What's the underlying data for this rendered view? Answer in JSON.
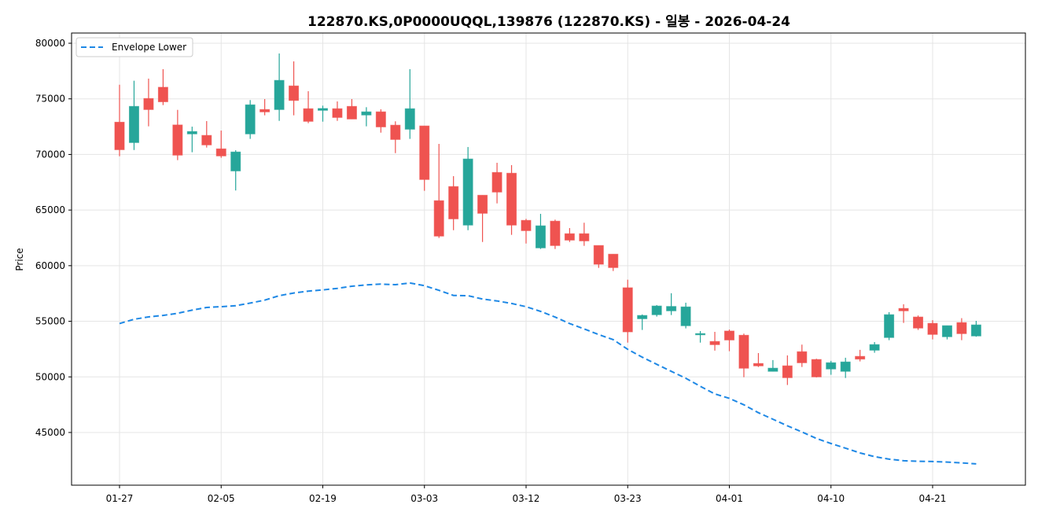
{
  "chart_data": {
    "type": "candlestick",
    "title": "122870.KS,0P0000UQQL,139876 (122870.KS) - 일봉 - 2026-04-24",
    "xlabel": "",
    "ylabel": "Price",
    "ylim": [
      40500,
      80500
    ],
    "yticks": [
      45000,
      50000,
      55000,
      60000,
      65000,
      70000,
      75000,
      80000
    ],
    "xtick_labels": [
      "01-27",
      "02-05",
      "02-19",
      "03-03",
      "03-12",
      "03-23",
      "04-01",
      "04-10",
      "04-21"
    ],
    "grid": true,
    "legend_position": "top-left",
    "colors": {
      "up": "#26a69a",
      "down": "#ef5350",
      "envelope": "#1e88e5"
    },
    "dates": [
      "01-27",
      "01-28",
      "01-29",
      "01-30",
      "02-02",
      "02-03",
      "02-04",
      "02-05",
      "02-06",
      "02-09",
      "02-10",
      "02-11",
      "02-12",
      "02-13",
      "02-19",
      "02-20",
      "02-23",
      "02-24",
      "02-25",
      "02-26",
      "02-27",
      "03-03",
      "03-04",
      "03-05",
      "03-06",
      "03-09",
      "03-10",
      "03-11",
      "03-12",
      "03-13",
      "03-16",
      "03-17",
      "03-18",
      "03-19",
      "03-20",
      "03-23",
      "03-24",
      "03-25",
      "03-26",
      "03-27",
      "03-30",
      "03-31",
      "04-01",
      "04-02",
      "04-03",
      "04-06",
      "04-07",
      "04-08",
      "04-09",
      "04-10",
      "04-13",
      "04-14",
      "04-15",
      "04-16",
      "04-17",
      "04-20",
      "04-21",
      "04-22",
      "04-23",
      "04-24"
    ],
    "open": [
      72900,
      71070,
      75030,
      76040,
      72650,
      71850,
      71710,
      70500,
      68520,
      71850,
      74040,
      74040,
      76160,
      74110,
      73970,
      74110,
      74320,
      73550,
      73830,
      72630,
      72270,
      72560,
      65840,
      67110,
      63650,
      66330,
      68380,
      68310,
      64070,
      61600,
      64000,
      62870,
      62870,
      61810,
      61030,
      58010,
      55230,
      55590,
      55940,
      54600,
      53790,
      53180,
      54120,
      53740,
      51200,
      50500,
      50990,
      52260,
      51560,
      50710,
      50500,
      51840,
      52400,
      53540,
      56150,
      55380,
      54810,
      53610,
      54880,
      53680
    ],
    "high": [
      76270,
      76630,
      76820,
      77670,
      74010,
      72500,
      73000,
      72150,
      70380,
      74890,
      74980,
      79080,
      78370,
      75690,
      74390,
      74770,
      74980,
      74250,
      74060,
      72980,
      77670,
      72560,
      70950,
      68050,
      70670,
      66330,
      69250,
      69040,
      64210,
      64660,
      64140,
      63380,
      63860,
      61810,
      61030,
      58740,
      55610,
      56460,
      57520,
      56670,
      54120,
      54050,
      54260,
      53890,
      52140,
      51510,
      51930,
      52900,
      51630,
      51440,
      51720,
      52430,
      53130,
      55820,
      56530,
      55520,
      55100,
      54600,
      55280,
      55040
    ],
    "low": [
      69840,
      70400,
      72530,
      74440,
      69490,
      70200,
      70620,
      69700,
      66760,
      71400,
      73520,
      73020,
      73520,
      72810,
      72950,
      73020,
      73190,
      72530,
      71960,
      70120,
      71400,
      66730,
      62490,
      63190,
      63190,
      62130,
      65600,
      62770,
      61990,
      61500,
      61500,
      62130,
      61780,
      59800,
      59520,
      53080,
      54220,
      55420,
      55560,
      54360,
      53080,
      52360,
      52310,
      49970,
      50890,
      50500,
      49270,
      50890,
      49950,
      50190,
      49900,
      51390,
      52170,
      53300,
      54850,
      54220,
      53370,
      53370,
      53300,
      53610
    ],
    "close": [
      70430,
      74320,
      74040,
      74740,
      69940,
      72060,
      70860,
      69870,
      70220,
      74460,
      73830,
      76660,
      74860,
      72980,
      74130,
      73330,
      73190,
      73830,
      72480,
      71350,
      74110,
      67750,
      62660,
      64210,
      69590,
      64710,
      66620,
      63650,
      63150,
      63580,
      61810,
      62300,
      62230,
      60130,
      59830,
      54050,
      55520,
      56370,
      56330,
      56290,
      53890,
      52900,
      53320,
      50780,
      50990,
      50780,
      49930,
      51270,
      50000,
      51270,
      51340,
      51600,
      52900,
      55590,
      55940,
      54390,
      53820,
      54600,
      53890,
      54670
    ],
    "series": [
      {
        "name": "Envelope Lower",
        "style": "dashed",
        "values": [
          54800,
          55180,
          55390,
          55530,
          55720,
          56000,
          56240,
          56310,
          56400,
          56640,
          56900,
          57300,
          57540,
          57710,
          57820,
          57960,
          58150,
          58270,
          58340,
          58290,
          58440,
          58200,
          57780,
          57320,
          57300,
          57000,
          56830,
          56600,
          56310,
          55890,
          55380,
          54790,
          54320,
          53800,
          53350,
          52480,
          51770,
          51130,
          50500,
          49880,
          49150,
          48470,
          48070,
          47490,
          46780,
          46190,
          45600,
          45050,
          44460,
          44010,
          43590,
          43160,
          42830,
          42600,
          42460,
          42410,
          42390,
          42340,
          42270,
          42180
        ]
      }
    ]
  }
}
